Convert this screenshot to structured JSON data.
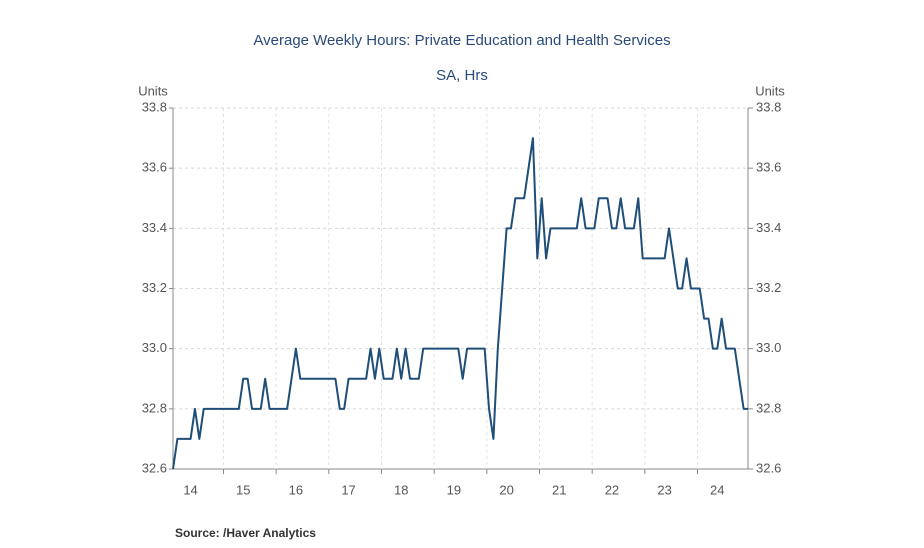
{
  "chart_data": {
    "type": "line",
    "title": "Average Weekly Hours: Private Education and Health Services",
    "subtitle": "SA, Hrs",
    "ylabel": "Units",
    "y2label": "Units",
    "source": "Source:  /Haver Analytics",
    "color": "#1f4e79",
    "categories": [
      null,
      null,
      null,
      null,
      "14",
      null,
      null,
      null,
      null,
      null,
      null,
      null,
      null,
      null,
      null,
      null,
      "15",
      null,
      null,
      null,
      null,
      null,
      null,
      null,
      null,
      null,
      null,
      null,
      "16",
      null,
      null,
      null,
      null,
      null,
      null,
      null,
      null,
      null,
      null,
      null,
      "17",
      null,
      null,
      null,
      null,
      null,
      null,
      null,
      null,
      null,
      null,
      null,
      "18",
      null,
      null,
      null,
      null,
      null,
      null,
      null,
      null,
      null,
      null,
      null,
      "19",
      null,
      null,
      null,
      null,
      null,
      null,
      null,
      null,
      null,
      null,
      null,
      "20",
      null,
      null,
      null,
      null,
      null,
      null,
      null,
      null,
      null,
      null,
      null,
      "21",
      null,
      null,
      null,
      null,
      null,
      null,
      null,
      null,
      null,
      null,
      null,
      "22",
      null,
      null,
      null,
      null,
      null,
      null,
      null,
      null,
      null,
      null,
      null,
      "23",
      null,
      null,
      null,
      null,
      null,
      null,
      null,
      null,
      null,
      null,
      null,
      "24",
      null,
      null,
      null,
      null,
      null,
      null,
      null
    ],
    "values": [
      32.6,
      32.7,
      32.7,
      32.7,
      32.7,
      32.8,
      32.7,
      32.8,
      32.8,
      32.8,
      32.8,
      32.8,
      32.8,
      32.8,
      32.8,
      32.8,
      32.9,
      32.9,
      32.8,
      32.8,
      32.8,
      32.9,
      32.8,
      32.8,
      32.8,
      32.8,
      32.8,
      32.9,
      33.0,
      32.9,
      32.9,
      32.9,
      32.9,
      32.9,
      32.9,
      32.9,
      32.9,
      32.9,
      32.8,
      32.8,
      32.9,
      32.9,
      32.9,
      32.9,
      32.9,
      33.0,
      32.9,
      33.0,
      32.9,
      32.9,
      32.9,
      33.0,
      32.9,
      33.0,
      32.9,
      32.9,
      32.9,
      33.0,
      33.0,
      33.0,
      33.0,
      33.0,
      33.0,
      33.0,
      33.0,
      33.0,
      32.9,
      33.0,
      33.0,
      33.0,
      33.0,
      33.0,
      32.8,
      32.7,
      33.0,
      33.2,
      33.4,
      33.4,
      33.5,
      33.5,
      33.5,
      33.6,
      33.7,
      33.3,
      33.5,
      33.3,
      33.4,
      33.4,
      33.4,
      33.4,
      33.4,
      33.4,
      33.4,
      33.5,
      33.4,
      33.4,
      33.4,
      33.5,
      33.5,
      33.5,
      33.4,
      33.4,
      33.5,
      33.4,
      33.4,
      33.4,
      33.5,
      33.3,
      33.3,
      33.3,
      33.3,
      33.3,
      33.3,
      33.4,
      33.3,
      33.2,
      33.2,
      33.3,
      33.2,
      33.2,
      33.2,
      33.1,
      33.1,
      33.0,
      33.0,
      33.1,
      33.0,
      33.0,
      33.0,
      32.9,
      32.8,
      32.8
    ],
    "ylim": [
      32.6,
      33.8
    ],
    "yticks": [
      32.6,
      32.8,
      {
        "value": 33,
        "label": "33.0"
      },
      33.2,
      33.4,
      33.6,
      33.8
    ],
    "y2lim": [
      32.6,
      33.8
    ],
    "y2ticks": [
      32.6,
      32.8,
      {
        "value": 33,
        "label": "33.0"
      },
      33.2,
      33.4,
      33.6,
      33.8
    ],
    "grid": true
  }
}
